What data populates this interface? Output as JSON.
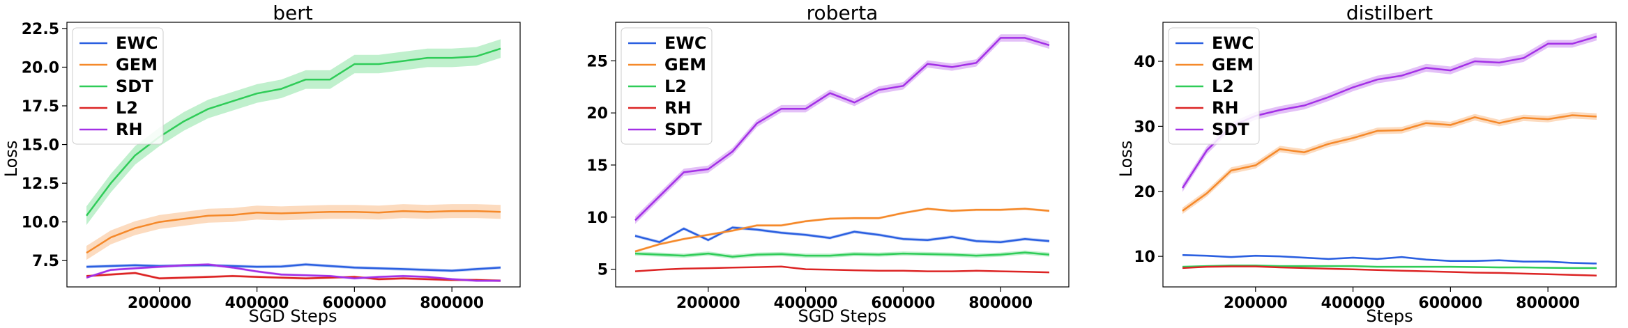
{
  "colors": {
    "blue": "#2a5fe0",
    "orange": "#f5892a",
    "green": "#2fcc58",
    "red": "#dc2424",
    "purple": "#a330e6"
  },
  "chart_data": [
    {
      "type": "line",
      "title": "bert",
      "xlabel": "SGD Steps",
      "ylabel": "Loss",
      "xlim": [
        10000,
        940000
      ],
      "ylim": [
        5.8,
        22.9
      ],
      "xticks": [
        200000,
        400000,
        600000,
        800000
      ],
      "yticks": [
        7.5,
        10.0,
        12.5,
        15.0,
        17.5,
        20.0,
        22.5
      ],
      "ytick_labels": [
        "7.5",
        "10.0",
        "12.5",
        "15.0",
        "17.5",
        "20.0",
        "22.5"
      ],
      "grid": false,
      "legend_position": "top-left",
      "x": [
        50000,
        100000,
        150000,
        200000,
        250000,
        300000,
        350000,
        400000,
        450000,
        500000,
        550000,
        600000,
        650000,
        700000,
        750000,
        800000,
        850000,
        900000
      ],
      "series": [
        {
          "name": "EWC",
          "color": "blue",
          "band": 0.1,
          "values": [
            7.1,
            7.15,
            7.2,
            7.15,
            7.18,
            7.2,
            7.15,
            7.1,
            7.12,
            7.25,
            7.15,
            7.05,
            7.0,
            6.95,
            6.9,
            6.85,
            6.95,
            7.05
          ]
        },
        {
          "name": "GEM",
          "color": "orange",
          "band": 0.45,
          "values": [
            8.0,
            9.0,
            9.6,
            10.0,
            10.2,
            10.4,
            10.45,
            10.6,
            10.55,
            10.6,
            10.65,
            10.65,
            10.6,
            10.7,
            10.65,
            10.7,
            10.7,
            10.65
          ]
        },
        {
          "name": "SDT",
          "color": "green",
          "band": 0.6,
          "values": [
            10.4,
            12.5,
            14.3,
            15.5,
            16.5,
            17.3,
            17.8,
            18.3,
            18.6,
            19.2,
            19.2,
            20.2,
            20.2,
            20.4,
            20.6,
            20.6,
            20.7,
            21.2
          ]
        },
        {
          "name": "L2",
          "color": "red",
          "band": 0.08,
          "values": [
            6.5,
            6.6,
            6.7,
            6.35,
            6.4,
            6.45,
            6.5,
            6.45,
            6.4,
            6.35,
            6.4,
            6.45,
            6.3,
            6.35,
            6.3,
            6.25,
            6.25,
            6.2
          ]
        },
        {
          "name": "RH",
          "color": "purple",
          "band": 0.08,
          "values": [
            6.4,
            6.9,
            7.0,
            7.1,
            7.2,
            7.25,
            7.05,
            6.8,
            6.6,
            6.55,
            6.5,
            6.35,
            6.45,
            6.5,
            6.45,
            6.3,
            6.2,
            6.2
          ]
        }
      ]
    },
    {
      "type": "line",
      "title": "roberta",
      "xlabel": "SGD Steps",
      "ylabel": "",
      "xlim": [
        10000,
        940000
      ],
      "ylim": [
        3.3,
        28.7
      ],
      "xticks": [
        200000,
        400000,
        600000,
        800000
      ],
      "yticks": [
        5,
        10,
        15,
        20,
        25
      ],
      "ytick_labels": [
        "5",
        "10",
        "15",
        "20",
        "25"
      ],
      "grid": false,
      "legend_position": "top-left",
      "x": [
        50000,
        100000,
        150000,
        200000,
        250000,
        300000,
        350000,
        400000,
        450000,
        500000,
        550000,
        600000,
        650000,
        700000,
        750000,
        800000,
        850000,
        900000
      ],
      "series": [
        {
          "name": "EWC",
          "color": "blue",
          "band": 0.15,
          "values": [
            8.2,
            7.6,
            8.9,
            7.8,
            9.0,
            8.8,
            8.5,
            8.3,
            8.0,
            8.6,
            8.3,
            7.9,
            7.8,
            8.1,
            7.7,
            7.6,
            7.9,
            7.7
          ]
        },
        {
          "name": "GEM",
          "color": "orange",
          "band": 0.12,
          "values": [
            6.7,
            7.4,
            7.9,
            8.3,
            8.7,
            9.2,
            9.2,
            9.6,
            9.85,
            9.9,
            9.9,
            10.4,
            10.8,
            10.6,
            10.7,
            10.7,
            10.8,
            10.6
          ]
        },
        {
          "name": "L2",
          "color": "green",
          "band": 0.2,
          "values": [
            6.5,
            6.4,
            6.3,
            6.5,
            6.2,
            6.4,
            6.45,
            6.3,
            6.3,
            6.45,
            6.4,
            6.5,
            6.45,
            6.4,
            6.3,
            6.4,
            6.6,
            6.4
          ]
        },
        {
          "name": "RH",
          "color": "red",
          "band": 0.06,
          "values": [
            4.8,
            4.95,
            5.05,
            5.1,
            5.15,
            5.2,
            5.25,
            5.0,
            4.95,
            4.9,
            4.85,
            4.85,
            4.8,
            4.8,
            4.85,
            4.8,
            4.75,
            4.7
          ]
        },
        {
          "name": "SDT",
          "color": "purple",
          "band": 0.35,
          "values": [
            9.7,
            12.0,
            14.3,
            14.6,
            16.3,
            19.0,
            20.4,
            20.4,
            21.9,
            21.0,
            22.2,
            22.6,
            24.7,
            24.4,
            24.8,
            27.2,
            27.2,
            26.5
          ]
        }
      ]
    },
    {
      "type": "line",
      "title": "distilbert",
      "xlabel": "Steps",
      "ylabel": "Loss",
      "xlim": [
        10000,
        940000
      ],
      "ylim": [
        5.3,
        46.0
      ],
      "xticks": [
        200000,
        400000,
        600000,
        800000
      ],
      "yticks": [
        10,
        20,
        30,
        40
      ],
      "ytick_labels": [
        "10",
        "20",
        "30",
        "40"
      ],
      "grid": false,
      "legend_position": "top-left",
      "x": [
        50000,
        100000,
        150000,
        200000,
        250000,
        300000,
        350000,
        400000,
        450000,
        500000,
        550000,
        600000,
        650000,
        700000,
        750000,
        800000,
        850000,
        900000
      ],
      "series": [
        {
          "name": "EWC",
          "color": "blue",
          "band": 0.15,
          "values": [
            10.2,
            10.1,
            9.9,
            10.1,
            10.0,
            9.8,
            9.6,
            9.8,
            9.6,
            9.9,
            9.5,
            9.3,
            9.3,
            9.4,
            9.2,
            9.2,
            9.0,
            8.9
          ]
        },
        {
          "name": "GEM",
          "color": "orange",
          "band": 0.5,
          "values": [
            17.0,
            19.7,
            23.2,
            24.0,
            26.5,
            26.0,
            27.3,
            28.2,
            29.3,
            29.4,
            30.5,
            30.2,
            31.4,
            30.5,
            31.3,
            31.1,
            31.7,
            31.5
          ]
        },
        {
          "name": "L2",
          "color": "green",
          "band": 0.15,
          "values": [
            8.4,
            8.5,
            8.6,
            8.6,
            8.5,
            8.5,
            8.5,
            8.5,
            8.4,
            8.4,
            8.4,
            8.4,
            8.35,
            8.3,
            8.3,
            8.25,
            8.2,
            8.2
          ]
        },
        {
          "name": "RH",
          "color": "red",
          "band": 0.08,
          "values": [
            8.2,
            8.4,
            8.45,
            8.45,
            8.3,
            8.2,
            8.1,
            8.0,
            7.9,
            7.8,
            7.7,
            7.6,
            7.5,
            7.45,
            7.35,
            7.25,
            7.15,
            7.05
          ]
        },
        {
          "name": "SDT",
          "color": "purple",
          "band": 0.6,
          "values": [
            20.5,
            26.3,
            30.0,
            31.6,
            32.5,
            33.2,
            34.5,
            36.0,
            37.2,
            37.8,
            39.0,
            38.6,
            40.0,
            39.8,
            40.5,
            42.7,
            42.7,
            43.8
          ]
        }
      ]
    }
  ]
}
